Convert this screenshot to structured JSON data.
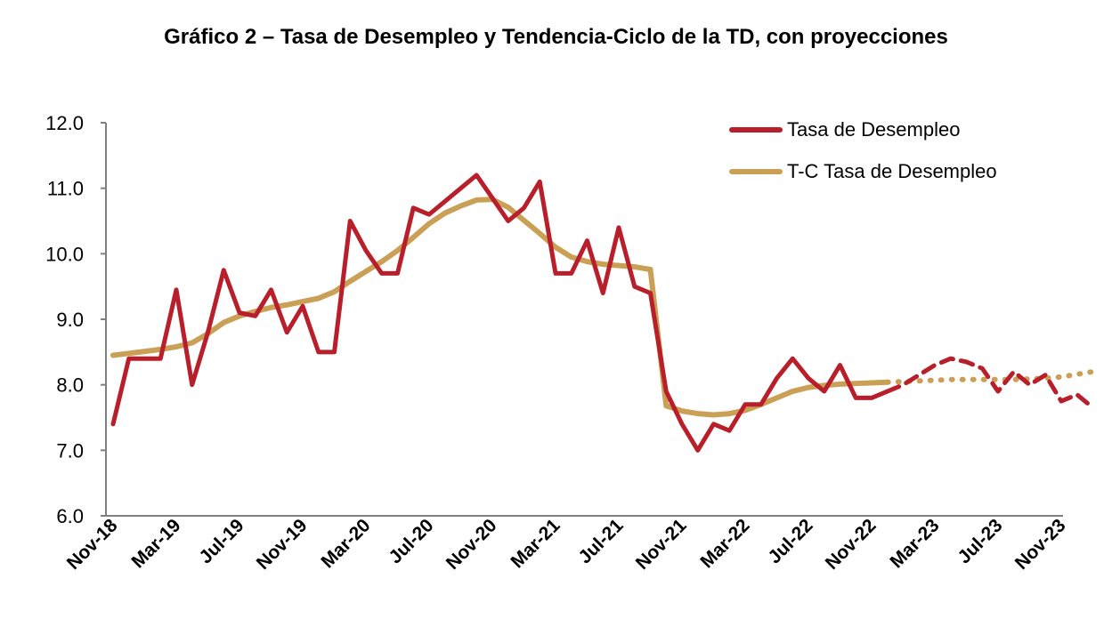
{
  "chart_data": {
    "type": "line",
    "title": "Gráfico 2 – Tasa de Desempleo y Tendencia-Ciclo de la TD, con proyecciones",
    "ylim": [
      6.0,
      12.0
    ],
    "yticks": [
      "6.0",
      "7.0",
      "8.0",
      "9.0",
      "10.0",
      "11.0",
      "12.0"
    ],
    "xlabels": [
      "Nov-18",
      "Mar-19",
      "Jul-19",
      "Nov-19",
      "Mar-20",
      "Jul-20",
      "Nov-20",
      "Mar-21",
      "Jul-21",
      "Nov-21",
      "Mar-22",
      "Jul-22",
      "Nov-22",
      "Mar-23",
      "Jul-23",
      "Nov-23"
    ],
    "x_first": "Nov-18",
    "x_last": "Dec-23",
    "colors": {
      "td": "#b81f2b",
      "tc": "#c9a055",
      "axis": "#7f7f7f"
    },
    "legend": {
      "position": "top-right",
      "entries": [
        "Tasa de Desempleo",
        "T-C Tasa de Desempleo"
      ]
    },
    "series": [
      {
        "name": "Tasa de Desempleo",
        "style": "solid",
        "values": [
          7.4,
          8.4,
          8.4,
          8.4,
          9.45,
          8.0,
          8.8,
          9.75,
          9.1,
          9.05,
          9.45,
          8.8,
          9.2,
          8.5,
          8.5,
          10.5,
          10.05,
          9.7,
          9.7,
          10.7,
          10.6,
          10.8,
          11.0,
          11.2,
          10.85,
          10.5,
          10.7,
          11.1,
          9.7,
          9.7,
          10.2,
          9.4,
          10.4,
          9.5,
          9.4,
          7.9,
          7.4,
          7.0,
          7.4,
          7.3,
          7.7,
          7.7,
          8.1,
          8.4,
          8.1,
          7.9,
          8.3,
          7.8,
          7.8,
          7.9
        ]
      },
      {
        "name": "Tasa de Desempleo (proyección)",
        "style": "dashed",
        "start_index": 49,
        "values": [
          7.9,
          8.0,
          8.15,
          8.3,
          8.4,
          8.35,
          8.25,
          7.9,
          8.2,
          8.0,
          8.15,
          7.75,
          7.85,
          7.65
        ]
      },
      {
        "name": "T-C Tasa de Desempleo",
        "style": "solid",
        "values": [
          8.45,
          8.48,
          8.51,
          8.54,
          8.58,
          8.64,
          8.78,
          8.95,
          9.05,
          9.12,
          9.18,
          9.22,
          9.27,
          9.32,
          9.42,
          9.58,
          9.73,
          9.88,
          10.05,
          10.25,
          10.46,
          10.62,
          10.73,
          10.82,
          10.83,
          10.71,
          10.51,
          10.31,
          10.1,
          9.95,
          9.88,
          9.84,
          9.82,
          9.8,
          9.76,
          7.68,
          7.6,
          7.56,
          7.54,
          7.56,
          7.61,
          7.7,
          7.8,
          7.9,
          7.96,
          7.99,
          8.01,
          8.02,
          8.03,
          8.04
        ]
      },
      {
        "name": "T-C Tasa de Desempleo (proyección)",
        "style": "dotted",
        "start_index": 49,
        "values": [
          8.04,
          8.05,
          8.06,
          8.07,
          8.08,
          8.08,
          8.08,
          8.08,
          8.08,
          8.09,
          8.1,
          8.12,
          8.16,
          8.2
        ]
      }
    ]
  }
}
